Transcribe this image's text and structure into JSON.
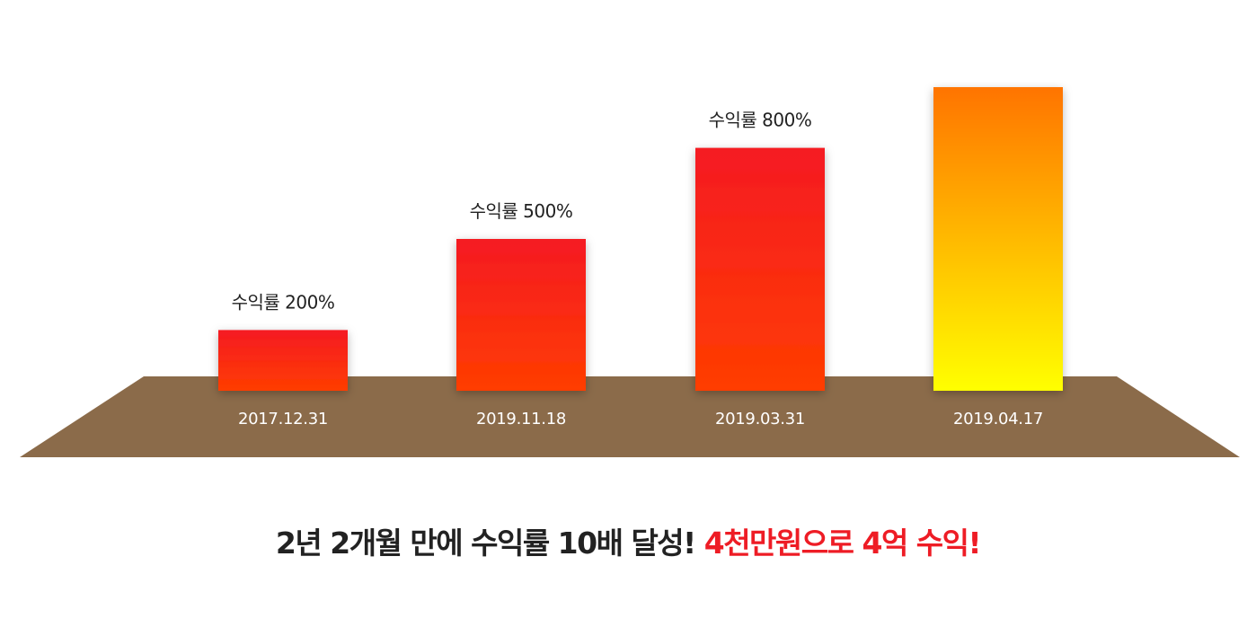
{
  "chart_data": {
    "type": "bar",
    "categories": [
      "2017.12.31",
      "2019.11.18",
      "2019.03.31",
      "2019.04.17"
    ],
    "values": [
      200,
      500,
      800,
      1000
    ],
    "bar_labels": [
      "수익률 200%",
      "수익률 500%",
      "수익률 800%",
      ""
    ],
    "ylim": [
      0,
      1000
    ],
    "grid": false,
    "colors": {
      "bar_gradient_top": "#f51a23",
      "bar_gradient_bottom": "#ff3d00",
      "final_bar_gradient_top": "#ff7400",
      "final_bar_gradient_bottom": "#ffff00",
      "floor": "#8b6b4a",
      "bar_label_text": "#222222",
      "date_label_text": "#ffffff"
    }
  },
  "headline": {
    "main": "2년 2개월 만에 수익률 10배 달성!",
    "highlight": "4천만원으로 4억 수익!",
    "highlight_color": "#ee1c25"
  }
}
